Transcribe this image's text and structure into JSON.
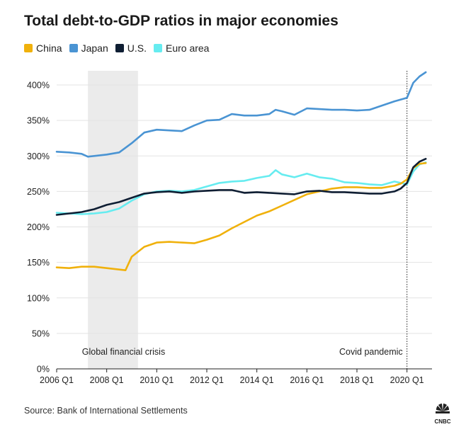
{
  "title": "Total debt-to-GDP ratios in major economies",
  "source": "Source: Bank of International Settlements",
  "logo_text": "CNBC",
  "chart_data": {
    "type": "line",
    "title": "Total debt-to-GDP ratios in major economies",
    "xlabel": "",
    "ylabel": "",
    "x_range": [
      2006.0,
      2021.0
    ],
    "ylim": [
      0,
      420
    ],
    "y_ticks": [
      0,
      50,
      100,
      150,
      200,
      250,
      300,
      350,
      400
    ],
    "y_tick_labels": [
      "0%",
      "50%",
      "100%",
      "150%",
      "200%",
      "250%",
      "300%",
      "350%",
      "400%"
    ],
    "x_ticks": [
      2006.0,
      2008.0,
      2010.0,
      2012.0,
      2014.0,
      2016.0,
      2018.0,
      2020.0
    ],
    "x_tick_labels": [
      "2006 Q1",
      "2008 Q1",
      "2010 Q1",
      "2012 Q1",
      "2014 Q1",
      "2016 Q1",
      "2018 Q1",
      "2020 Q1"
    ],
    "legend_position": "top-left",
    "grid": "horizontal",
    "annotations": [
      {
        "type": "band",
        "x_start": 2007.25,
        "x_end": 2009.25,
        "label": "Global financial crisis"
      },
      {
        "type": "vline",
        "x": 2020.0,
        "label": "Covid pandemic"
      }
    ],
    "series": [
      {
        "name": "China",
        "color": "#f0b10c",
        "x": [
          2006.0,
          2006.5,
          2007.0,
          2007.5,
          2008.0,
          2008.5,
          2008.75,
          2009.0,
          2009.5,
          2010.0,
          2010.5,
          2011.0,
          2011.5,
          2012.0,
          2012.5,
          2013.0,
          2013.5,
          2014.0,
          2014.5,
          2015.0,
          2015.5,
          2016.0,
          2016.5,
          2017.0,
          2017.5,
          2018.0,
          2018.5,
          2019.0,
          2019.5,
          2019.75,
          2020.0,
          2020.25,
          2020.5,
          2020.75
        ],
        "values": [
          143,
          142,
          144,
          144,
          142,
          140,
          139,
          158,
          172,
          178,
          179,
          178,
          177,
          182,
          188,
          198,
          207,
          216,
          222,
          230,
          238,
          246,
          250,
          254,
          256,
          256,
          255,
          255,
          258,
          261,
          267,
          283,
          289,
          290
        ]
      },
      {
        "name": "Japan",
        "color": "#4a94d3",
        "x": [
          2006.0,
          2006.5,
          2007.0,
          2007.25,
          2007.5,
          2008.0,
          2008.5,
          2009.0,
          2009.5,
          2010.0,
          2010.5,
          2011.0,
          2011.5,
          2012.0,
          2012.5,
          2013.0,
          2013.5,
          2014.0,
          2014.5,
          2014.75,
          2015.0,
          2015.5,
          2016.0,
          2016.5,
          2017.0,
          2017.5,
          2018.0,
          2018.5,
          2019.0,
          2019.5,
          2020.0,
          2020.25,
          2020.5,
          2020.75
        ],
        "values": [
          306,
          305,
          303,
          299,
          300,
          302,
          305,
          318,
          333,
          337,
          336,
          335,
          343,
          350,
          351,
          359,
          357,
          357,
          359,
          365,
          363,
          358,
          367,
          366,
          365,
          365,
          364,
          365,
          371,
          377,
          382,
          403,
          412,
          418
        ]
      },
      {
        "name": "U.S.",
        "color": "#0f1e33",
        "x": [
          2006.0,
          2006.5,
          2007.0,
          2007.5,
          2008.0,
          2008.5,
          2009.0,
          2009.5,
          2010.0,
          2010.5,
          2011.0,
          2011.5,
          2012.0,
          2012.5,
          2013.0,
          2013.5,
          2014.0,
          2014.5,
          2015.0,
          2015.5,
          2016.0,
          2016.5,
          2017.0,
          2017.5,
          2018.0,
          2018.5,
          2019.0,
          2019.5,
          2019.75,
          2020.0,
          2020.25,
          2020.5,
          2020.75
        ],
        "values": [
          217,
          219,
          221,
          225,
          231,
          235,
          241,
          247,
          249,
          250,
          248,
          250,
          251,
          252,
          252,
          248,
          249,
          248,
          247,
          246,
          250,
          251,
          249,
          249,
          248,
          247,
          247,
          250,
          254,
          262,
          284,
          292,
          296
        ]
      },
      {
        "name": "Euro area",
        "color": "#66ecf0",
        "x": [
          2006.0,
          2006.5,
          2007.0,
          2007.5,
          2008.0,
          2008.5,
          2009.0,
          2009.5,
          2010.0,
          2010.5,
          2011.0,
          2011.5,
          2012.0,
          2012.5,
          2013.0,
          2013.5,
          2014.0,
          2014.5,
          2014.75,
          2015.0,
          2015.5,
          2016.0,
          2016.5,
          2017.0,
          2017.5,
          2018.0,
          2018.5,
          2019.0,
          2019.5,
          2020.0,
          2020.25,
          2020.5,
          2020.75
        ],
        "values": [
          220,
          219,
          218,
          219,
          221,
          226,
          237,
          246,
          250,
          251,
          250,
          252,
          257,
          262,
          264,
          265,
          269,
          272,
          280,
          274,
          270,
          275,
          270,
          268,
          263,
          262,
          260,
          259,
          264,
          260,
          278,
          288,
          291
        ]
      }
    ]
  }
}
